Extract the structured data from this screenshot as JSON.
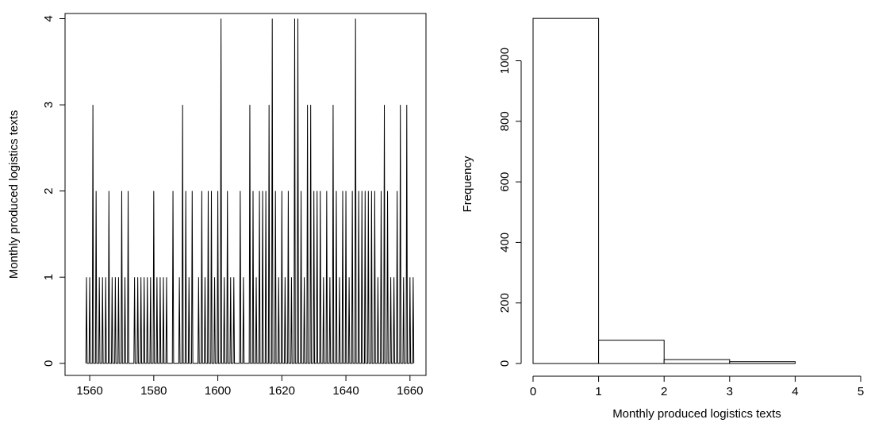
{
  "chart_data": [
    {
      "type": "line",
      "ylabel": "Monthly produced logistics texts",
      "color": "#000000",
      "xlim": [
        1552.3,
        1665
      ],
      "ylim": [
        -0.14,
        4.06
      ],
      "xticks": [
        1560,
        1580,
        1600,
        1620,
        1640,
        1660
      ],
      "yticks": [
        0,
        1,
        2,
        3,
        4
      ],
      "x": [
        1558.8,
        1559,
        1559.2,
        1559.8,
        1560,
        1560.2,
        1560.8,
        1561,
        1561.2,
        1561.8,
        1562,
        1562.2,
        1562.8,
        1563,
        1563.2,
        1563.8,
        1564,
        1564.2,
        1564.8,
        1565,
        1565.2,
        1565.8,
        1566,
        1566.2,
        1566.8,
        1567,
        1567.2,
        1567.8,
        1568,
        1568.2,
        1568.8,
        1569,
        1569.2,
        1569.8,
        1570,
        1570.2,
        1570.8,
        1571,
        1571.2,
        1571.8,
        1572,
        1572.2,
        1573.8,
        1574,
        1574.2,
        1574.8,
        1575,
        1575.2,
        1575.8,
        1576,
        1576.2,
        1576.8,
        1577,
        1577.2,
        1577.8,
        1578,
        1578.2,
        1578.8,
        1579,
        1579.2,
        1579.8,
        1580,
        1580.2,
        1580.8,
        1581,
        1581.2,
        1581.8,
        1582,
        1582.2,
        1582.8,
        1583,
        1583.2,
        1583.8,
        1584,
        1584.2,
        1585.8,
        1586,
        1586.2,
        1587.8,
        1588,
        1588.2,
        1588.8,
        1589,
        1589.2,
        1589.8,
        1590,
        1590.2,
        1590.8,
        1591,
        1591.2,
        1591.8,
        1592,
        1592.2,
        1593.8,
        1594,
        1594.2,
        1594.8,
        1595,
        1595.2,
        1595.8,
        1596,
        1596.2,
        1596.8,
        1597,
        1597.2,
        1597.8,
        1598,
        1598.2,
        1598.8,
        1599,
        1599.2,
        1599.8,
        1600,
        1600.2,
        1600.8,
        1601,
        1601.2,
        1601.8,
        1602,
        1602.2,
        1602.8,
        1603,
        1603.2,
        1603.8,
        1604,
        1604.2,
        1604.8,
        1605,
        1605.2,
        1606.8,
        1607,
        1607.2,
        1607.8,
        1608,
        1608.2,
        1609.8,
        1610,
        1610.2,
        1610.8,
        1611,
        1611.2,
        1611.8,
        1612,
        1612.2,
        1612.8,
        1613,
        1613.2,
        1613.8,
        1614,
        1614.2,
        1614.8,
        1615,
        1615.2,
        1615.8,
        1616,
        1616.2,
        1616.8,
        1617,
        1617.2,
        1617.8,
        1618,
        1618.2,
        1618.8,
        1619,
        1619.2,
        1619.8,
        1620,
        1620.2,
        1620.8,
        1621,
        1621.2,
        1621.8,
        1622,
        1622.2,
        1622.8,
        1623,
        1623.2,
        1623.8,
        1624,
        1624.2,
        1624.8,
        1625,
        1625.2,
        1625.8,
        1626,
        1626.2,
        1626.8,
        1627,
        1627.2,
        1627.8,
        1628,
        1628.2,
        1628.8,
        1629,
        1629.2,
        1629.8,
        1630,
        1630.2,
        1630.8,
        1631,
        1631.2,
        1631.8,
        1632,
        1632.2,
        1632.8,
        1633,
        1633.2,
        1633.8,
        1634,
        1634.2,
        1634.8,
        1635,
        1635.2,
        1635.8,
        1636,
        1636.2,
        1636.8,
        1637,
        1637.2,
        1637.8,
        1638,
        1638.2,
        1638.8,
        1639,
        1639.2,
        1639.8,
        1640,
        1640.2,
        1640.8,
        1641,
        1641.2,
        1641.8,
        1642,
        1642.2,
        1642.8,
        1643,
        1643.2,
        1643.8,
        1644,
        1644.2,
        1644.8,
        1645,
        1645.2,
        1645.8,
        1646,
        1646.2,
        1646.8,
        1647,
        1647.2,
        1647.8,
        1648,
        1648.2,
        1648.8,
        1649,
        1649.2,
        1649.8,
        1650,
        1650.2,
        1650.8,
        1651,
        1651.2,
        1651.8,
        1652,
        1652.2,
        1652.8,
        1653,
        1653.2,
        1653.8,
        1654,
        1654.2,
        1654.8,
        1655,
        1655.2,
        1655.8,
        1656,
        1656.2,
        1656.8,
        1657,
        1657.2,
        1657.8,
        1658,
        1658.2,
        1658.8,
        1659,
        1659.2,
        1659.8,
        1660,
        1660.2,
        1660.8,
        1661,
        1661.2
      ],
      "values": [
        0,
        1,
        0,
        0,
        1,
        0,
        0,
        3,
        0,
        0,
        2,
        0,
        0,
        1,
        0,
        0,
        1,
        0,
        0,
        1,
        0,
        0,
        2,
        0,
        0,
        1,
        0,
        0,
        1,
        0,
        0,
        1,
        0,
        0,
        2,
        0,
        0,
        1,
        0,
        0,
        2,
        0,
        0,
        1,
        0,
        0,
        1,
        0,
        0,
        1,
        0,
        0,
        1,
        0,
        0,
        1,
        0,
        0,
        1,
        0,
        0,
        2,
        0,
        0,
        1,
        0,
        0,
        1,
        0,
        0,
        1,
        0,
        0,
        1,
        0,
        0,
        2,
        0,
        0,
        1,
        0,
        0,
        3,
        0,
        0,
        2,
        0,
        0,
        1,
        0,
        0,
        2,
        0,
        0,
        1,
        0,
        0,
        2,
        0,
        0,
        1,
        0,
        0,
        2,
        0,
        0,
        2,
        0,
        0,
        1,
        0,
        0,
        2,
        0,
        0,
        4,
        0,
        0,
        1,
        0,
        0,
        2,
        0,
        0,
        1,
        0,
        0,
        1,
        0,
        0,
        2,
        0,
        0,
        1,
        0,
        0,
        3,
        0,
        0,
        2,
        0,
        0,
        1,
        0,
        0,
        2,
        0,
        0,
        2,
        0,
        0,
        2,
        0,
        0,
        3,
        0,
        0,
        4,
        0,
        0,
        2,
        0,
        0,
        1,
        0,
        0,
        2,
        0,
        0,
        1,
        0,
        0,
        2,
        0,
        0,
        1,
        0,
        0,
        4,
        0,
        0,
        4,
        0,
        0,
        2,
        0,
        0,
        1,
        0,
        0,
        3,
        0,
        0,
        3,
        0,
        0,
        2,
        0,
        0,
        2,
        0,
        0,
        2,
        0,
        0,
        1,
        0,
        0,
        2,
        0,
        0,
        1,
        0,
        0,
        3,
        0,
        0,
        2,
        0,
        0,
        1,
        0,
        0,
        2,
        0,
        0,
        2,
        0,
        0,
        1,
        0,
        0,
        2,
        0,
        0,
        4,
        0,
        0,
        2,
        0,
        0,
        2,
        0,
        0,
        2,
        0,
        0,
        2,
        0,
        0,
        2,
        0,
        0,
        2,
        0,
        0,
        1,
        0,
        0,
        2,
        0,
        0,
        3,
        0,
        0,
        2,
        0,
        0,
        1,
        0,
        0,
        1,
        0,
        0,
        2,
        0,
        0,
        3,
        0,
        0,
        1,
        0,
        0,
        3,
        0,
        0,
        1,
        0,
        0,
        1,
        0
      ]
    },
    {
      "type": "histogram",
      "xlabel": "Monthly produced logistics texts",
      "ylabel": "Frequency",
      "color": "#ffffff",
      "bins": [
        0,
        1,
        2,
        3,
        4,
        5
      ],
      "values": [
        1140,
        77,
        13,
        6,
        0
      ],
      "xlim": [
        0,
        5
      ],
      "ylim": [
        0,
        1185
      ],
      "xticks": [
        0,
        1,
        2,
        3,
        4,
        5
      ],
      "yticks": [
        0,
        200,
        400,
        600,
        800,
        1000
      ]
    }
  ]
}
